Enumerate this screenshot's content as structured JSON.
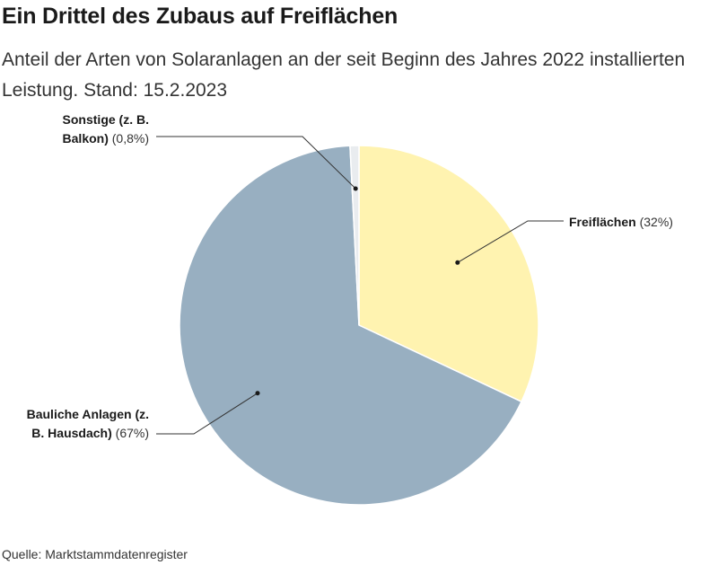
{
  "title": "Ein Drittel des Zubaus auf Freiflächen",
  "subtitle": "Anteil der Arten von Solaranlagen an der seit Beginn des Jahres 2022 installierten Leistung. Stand: 15.2.2023",
  "source": "Quelle: Marktstammdatenregister",
  "chart_data": {
    "type": "pie",
    "slices": [
      {
        "name": "Freiflächen",
        "label_lines": [
          "Freiflächen"
        ],
        "value_label": "(32%)",
        "value": 32.0,
        "color": "#fff3b0"
      },
      {
        "name": "Bauliche Anlagen (z. B. Hausdach)",
        "label_lines": [
          "Bauliche Anlagen (z.",
          "B. Hausdach)"
        ],
        "value_label": "(67%)",
        "value": 67.2,
        "color": "#98afc1"
      },
      {
        "name": "Sonstige (z. B. Balkon)",
        "label_lines": [
          "Sonstige (z. B.",
          "Balkon)"
        ],
        "value_label": "(0,8%)",
        "value": 0.8,
        "color": "#e9ecef"
      }
    ],
    "start_angle_deg": 0,
    "direction": "clockwise",
    "slice_border_color": "#ffffff"
  }
}
